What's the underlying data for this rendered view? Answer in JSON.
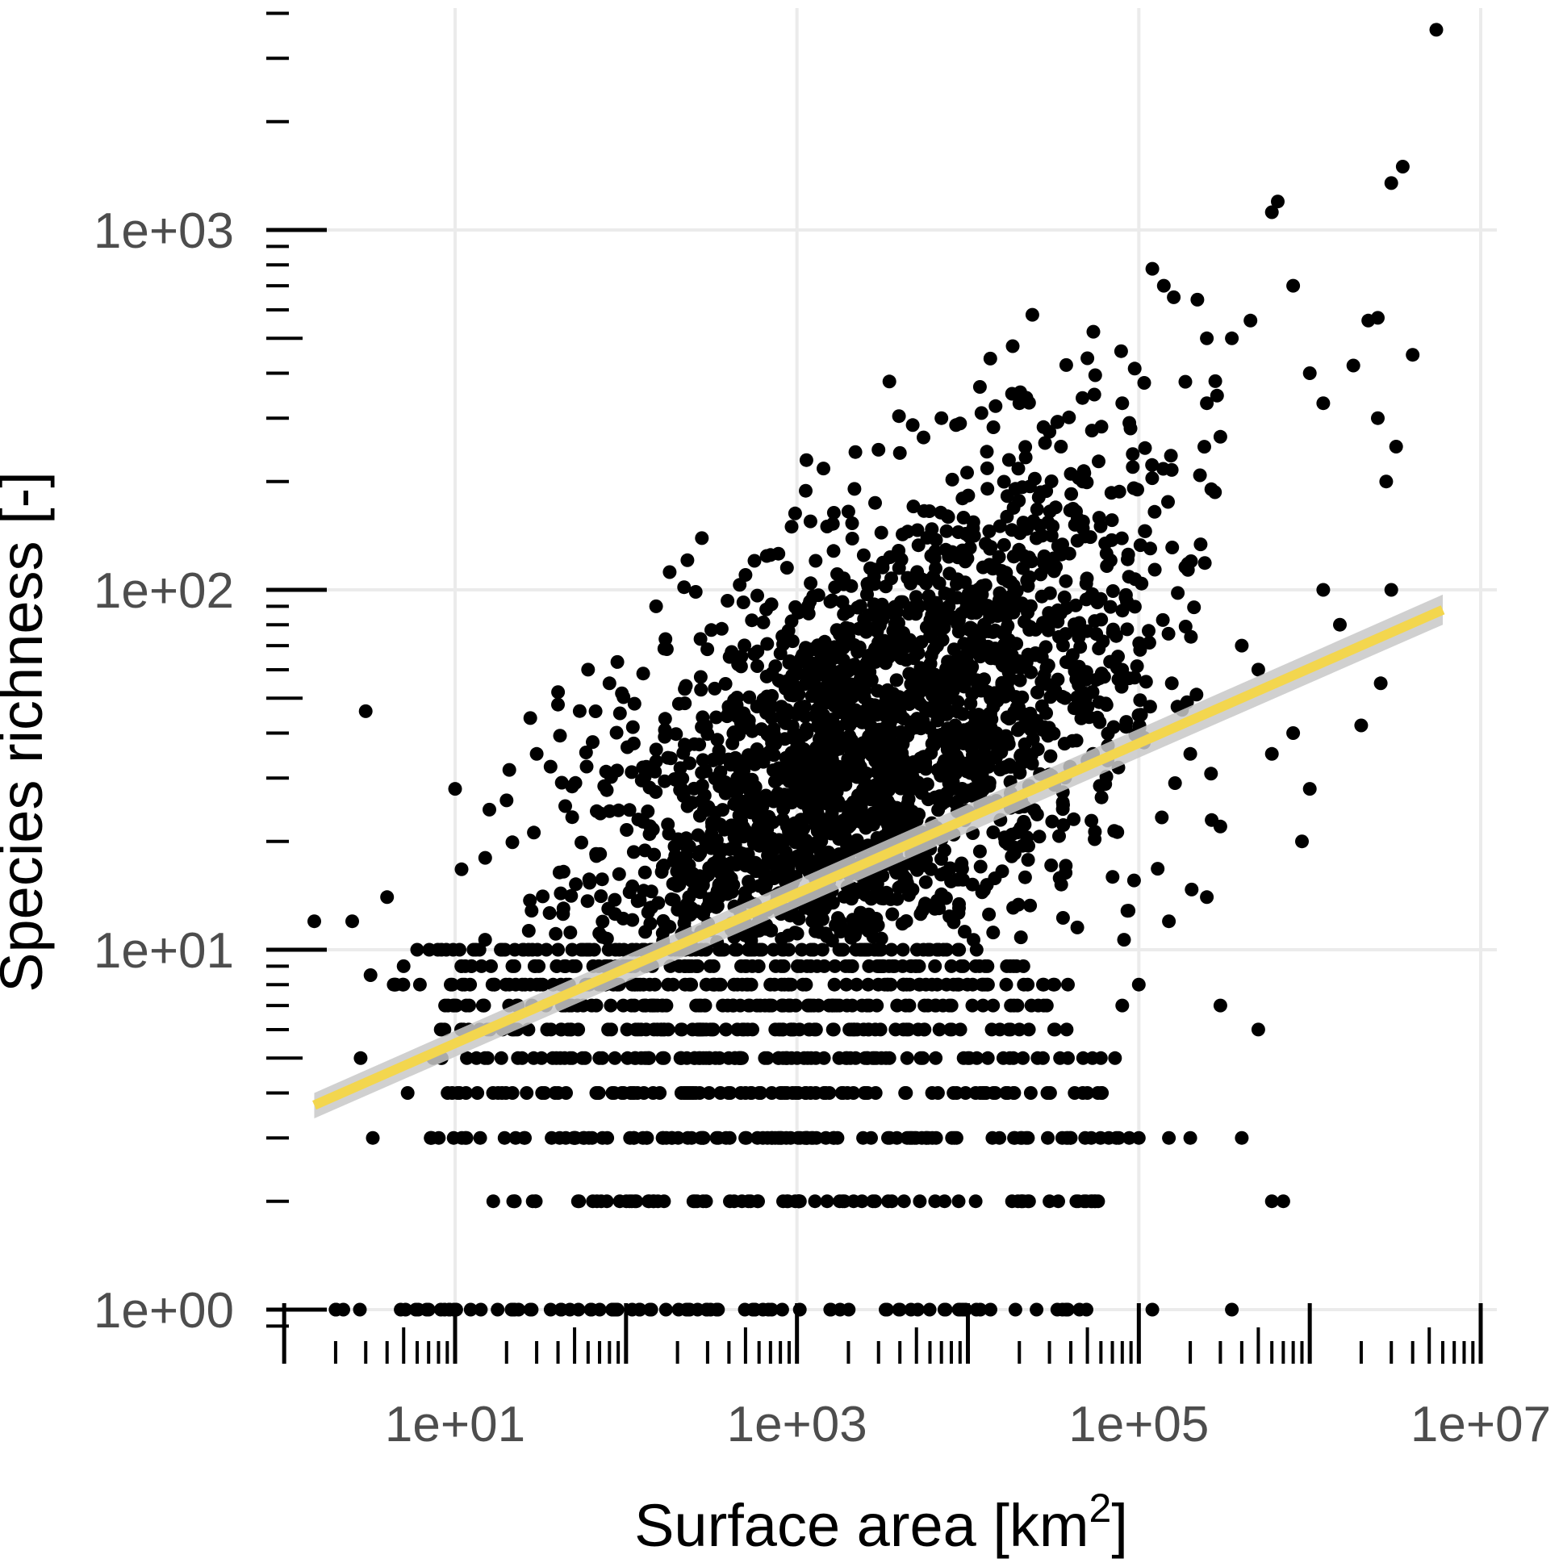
{
  "chart_data": {
    "type": "scatter",
    "xlabel": "Surface area [km",
    "xlabel_sup": "2",
    "xlabel_end": "]",
    "ylabel": "Species richness [-]",
    "x_scale": "log10",
    "y_scale": "log10",
    "xlim": [
      0.75,
      10000000
    ],
    "ylim": [
      0.82,
      5000
    ],
    "x_ticks": [
      {
        "value": 10,
        "label": "1e+01"
      },
      {
        "value": 1000,
        "label": "1e+03"
      },
      {
        "value": 100000,
        "label": "1e+05"
      },
      {
        "value": 10000000,
        "label": "1e+07"
      }
    ],
    "y_ticks": [
      {
        "value": 1,
        "label": "1e+00"
      },
      {
        "value": 10,
        "label": "1e+01"
      },
      {
        "value": 100,
        "label": "1e+02"
      },
      {
        "value": 1000,
        "label": "1e+03"
      }
    ],
    "grid": true,
    "point_color": "#000000",
    "fit": {
      "type": "linear regression in log-log space",
      "color": "#f3d64e",
      "ci_color": "#c8c8c8",
      "x": [
        1.5,
        6000000
      ],
      "y": [
        3.7,
        88
      ],
      "ci_lower": [
        3.4,
        80
      ],
      "ci_upper": [
        4.0,
        97
      ]
    },
    "points": [
      [
        1.5,
        12
      ],
      [
        2,
        1
      ],
      [
        2.8,
        5
      ],
      [
        3,
        46
      ],
      [
        3.3,
        3
      ],
      [
        2.5,
        12
      ],
      [
        4,
        14
      ],
      [
        4.5,
        8
      ],
      [
        3.2,
        8.5
      ],
      [
        5,
        9
      ],
      [
        6,
        10
      ],
      [
        7,
        1
      ],
      [
        10,
        28
      ],
      [
        15,
        18
      ],
      [
        20,
        26
      ],
      [
        30,
        35
      ],
      [
        40,
        48
      ],
      [
        60,
        60
      ],
      [
        80,
        55
      ],
      [
        150,
        90
      ],
      [
        180,
        112
      ],
      [
        170,
        73
      ],
      [
        500,
        110
      ],
      [
        700,
        125
      ],
      [
        1200,
        155
      ],
      [
        1500,
        150
      ],
      [
        2000,
        165
      ],
      [
        3000,
        245
      ],
      [
        4000,
        240
      ],
      [
        7000,
        300
      ],
      [
        9000,
        290
      ],
      [
        12000,
        310
      ],
      [
        20000,
        330
      ],
      [
        30000,
        275
      ],
      [
        35000,
        250
      ],
      [
        40000,
        210
      ],
      [
        50000,
        440
      ],
      [
        80000,
        330
      ],
      [
        120000,
        780
      ],
      [
        140000,
        700
      ],
      [
        160000,
        650
      ],
      [
        220000,
        640
      ],
      [
        250000,
        500
      ],
      [
        280000,
        380
      ],
      [
        250000,
        330
      ],
      [
        350000,
        500
      ],
      [
        450000,
        560
      ],
      [
        600000,
        1120
      ],
      [
        650000,
        1200
      ],
      [
        800000,
        700
      ],
      [
        1000000,
        400
      ],
      [
        1200000,
        330
      ],
      [
        1800000,
        420
      ],
      [
        2200000,
        560
      ],
      [
        2500000,
        570
      ],
      [
        3000000,
        1350
      ],
      [
        3500000,
        1500
      ],
      [
        4000000,
        450
      ],
      [
        5500000,
        3600
      ],
      [
        2500000,
        300
      ],
      [
        2800000,
        200
      ],
      [
        3200000,
        250
      ],
      [
        3000000,
        100
      ],
      [
        2600000,
        55
      ],
      [
        2000000,
        42
      ],
      [
        1500000,
        80
      ],
      [
        1200000,
        100
      ],
      [
        1000000,
        28
      ],
      [
        900000,
        20
      ],
      [
        800000,
        40
      ],
      [
        600000,
        35
      ],
      [
        500000,
        60
      ],
      [
        400000,
        70
      ],
      [
        300000,
        22
      ],
      [
        250000,
        14
      ],
      [
        200000,
        35
      ],
      [
        150000,
        12
      ],
      [
        100000,
        8
      ],
      [
        80000,
        7
      ],
      [
        60000,
        5
      ],
      [
        50000,
        4
      ],
      [
        40000,
        3
      ],
      [
        30000,
        2
      ],
      [
        20000,
        6
      ],
      [
        10000,
        5
      ],
      [
        500000,
        6
      ],
      [
        350000,
        1
      ],
      [
        120000,
        1
      ],
      [
        300000,
        7
      ],
      [
        400000,
        3
      ],
      [
        600000,
        2
      ],
      [
        700000,
        2
      ],
      [
        200000,
        3
      ],
      [
        150000,
        3
      ],
      [
        100000,
        3
      ]
    ],
    "dense_cloud": {
      "x_range": [
        10,
        300000
      ],
      "center_x": 2500,
      "center_y": 30,
      "count": 2600,
      "discrete_levels": [
        1,
        2,
        3,
        4,
        5,
        6,
        7,
        8,
        9,
        10
      ]
    }
  }
}
